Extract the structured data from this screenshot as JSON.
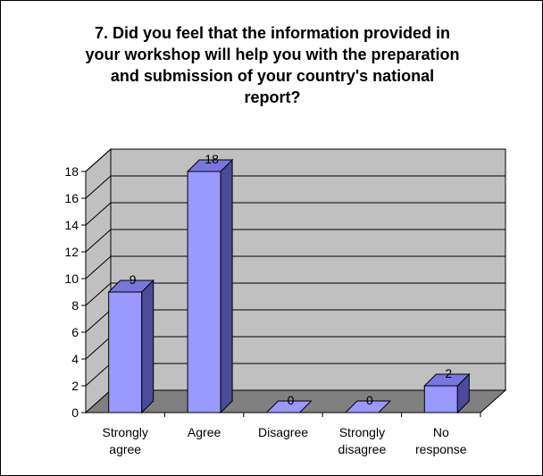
{
  "chart_data": {
    "type": "bar",
    "title": "7. Did you feel that the information provided in your workshop will help you with the preparation and submission of your country's national report?",
    "title_lines": [
      "7. Did you feel that the information provided in",
      "your workshop will help you with the preparation",
      "and submission of your country's national",
      "report?"
    ],
    "categories": [
      [
        "Strongly",
        "agree"
      ],
      [
        "Agree"
      ],
      [
        "Disagree"
      ],
      [
        "Strongly",
        "disagree"
      ],
      [
        "No",
        "response"
      ]
    ],
    "values": [
      9,
      18,
      0,
      0,
      2
    ],
    "data_labels": [
      "9",
      "18",
      "0",
      "0",
      "2"
    ],
    "ylim": [
      0,
      18
    ],
    "yticks": [
      0,
      2,
      4,
      6,
      8,
      10,
      12,
      14,
      16,
      18
    ],
    "grid": true,
    "three_d": true,
    "legend": "none",
    "colors": {
      "bar_front": "#9999ff",
      "bar_side": "#4b4b9a",
      "bar_top": "#7777dd",
      "wall": "#c0c0c0",
      "floor": "#808080"
    }
  }
}
